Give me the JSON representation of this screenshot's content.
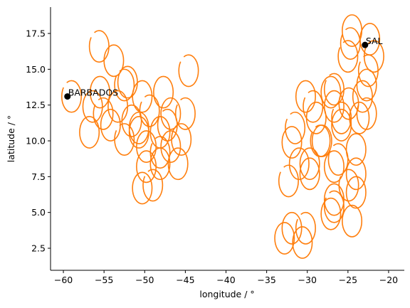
{
  "chart_data": {
    "type": "ellipse-scatter",
    "xlabel": "longitude / °",
    "ylabel": "latitude / °",
    "xlim": [
      -61.58,
      -18.07
    ],
    "ylim": [
      0.96,
      19.34
    ],
    "xticks": [
      {
        "value": -60,
        "label": "−60"
      },
      {
        "value": -55,
        "label": "−55"
      },
      {
        "value": -50,
        "label": "−50"
      },
      {
        "value": -45,
        "label": "−45"
      },
      {
        "value": -40,
        "label": "−40"
      },
      {
        "value": -35,
        "label": "−35"
      },
      {
        "value": -30,
        "label": "−30"
      },
      {
        "value": -25,
        "label": "−25"
      },
      {
        "value": -20,
        "label": "−20"
      }
    ],
    "yticks": [
      2.5,
      {
        "value": 5,
        "label": "5.0"
      },
      7.5,
      {
        "value": 10,
        "label": "10.0"
      },
      12.5,
      {
        "value": 15,
        "label": "15.0"
      },
      17.5
    ],
    "series": [
      {
        "color": "#ff7f0e",
        "radius_x": 1.2,
        "radius_y": 1.1,
        "x": [
          -55.6,
          -53.8,
          -55.5,
          -59.0,
          -56.4,
          -56.8,
          -55.1,
          -54.2,
          -53.3,
          -52.5,
          -52.1,
          -50.3,
          -49.4,
          -51.6,
          -50.7,
          -52.5,
          -49.8,
          -48.1,
          -47.2,
          -46.8,
          -47.7,
          -45.0,
          -45.5,
          -46.8,
          -48.1,
          -49.8,
          -50.3,
          -49.0,
          -48.1,
          -45.9,
          -44.6,
          -50.7,
          -24.5,
          -24.7,
          -21.8,
          -22.3,
          -22.5,
          -22.7,
          -23.2,
          -22.7,
          -23.6,
          -24.9,
          -26.7,
          -26.7,
          -27.1,
          -25.8,
          -25.8,
          -24.0,
          -26.2,
          -26.7,
          -24.0,
          -24.9,
          -24.0,
          -24.5,
          -26.7,
          -27.1,
          -26.7,
          -29.3,
          -28.9,
          -30.2,
          -31.5,
          -31.9,
          -31.0,
          -32.3,
          -29.7,
          -29.7,
          -28.4,
          -31.9,
          -32.8,
          -30.2,
          -30.6,
          -28.2,
          -25.0
        ],
        "y": [
          16.6,
          15.6,
          13.4,
          13.1,
          12.4,
          10.6,
          11.9,
          11.1,
          12.4,
          13.9,
          14.1,
          13.1,
          12.1,
          11.4,
          10.6,
          10.1,
          9.6,
          10.6,
          11.1,
          11.9,
          13.4,
          11.9,
          10.1,
          9.6,
          9.2,
          8.2,
          6.7,
          6.9,
          8.4,
          8.4,
          14.9,
          10.9,
          17.7,
          16.8,
          15.9,
          17.1,
          14.9,
          13.9,
          13.1,
          11.9,
          11.6,
          12.6,
          13.6,
          12.4,
          13.4,
          11.6,
          11.1,
          9.4,
          8.7,
          8.2,
          7.7,
          6.9,
          6.4,
          4.4,
          5.4,
          4.9,
          5.9,
          12.4,
          11.6,
          13.1,
          10.9,
          9.9,
          8.4,
          7.2,
          8.4,
          7.7,
          10.0,
          3.9,
          3.2,
          3.9,
          2.9,
          10.0,
          15.9
        ]
      },
      {
        "color": "#000000",
        "names": [
          "BARBADOS",
          "SAL"
        ],
        "x": [
          -59.5,
          -22.9
        ],
        "y": [
          13.1,
          16.7
        ]
      }
    ]
  }
}
